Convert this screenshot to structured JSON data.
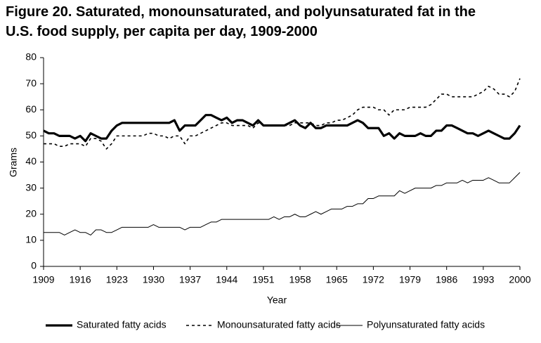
{
  "chart_data": {
    "type": "line",
    "title": "Figure 20. Saturated, monounsaturated, and polyunsaturated fat in the U.S. food supply, per capita per day, 1909-2000",
    "x_label": "Year",
    "y_label": "Grams",
    "x": [
      1909,
      1910,
      1911,
      1912,
      1913,
      1914,
      1915,
      1916,
      1917,
      1918,
      1919,
      1920,
      1921,
      1922,
      1923,
      1924,
      1925,
      1926,
      1927,
      1928,
      1929,
      1930,
      1931,
      1932,
      1933,
      1934,
      1935,
      1936,
      1937,
      1938,
      1939,
      1940,
      1941,
      1942,
      1943,
      1944,
      1945,
      1946,
      1947,
      1948,
      1949,
      1950,
      1951,
      1952,
      1953,
      1954,
      1955,
      1956,
      1957,
      1958,
      1959,
      1960,
      1961,
      1962,
      1963,
      1964,
      1965,
      1966,
      1967,
      1968,
      1969,
      1970,
      1971,
      1972,
      1973,
      1974,
      1975,
      1976,
      1977,
      1978,
      1979,
      1980,
      1981,
      1982,
      1983,
      1984,
      1985,
      1986,
      1987,
      1988,
      1989,
      1990,
      1991,
      1992,
      1993,
      1994,
      1995,
      1996,
      1997,
      1998,
      1999,
      2000
    ],
    "series": [
      {
        "name": "Saturated fatty acids",
        "color": "#000000",
        "style": "thick",
        "values": [
          52,
          51,
          51,
          50,
          50,
          50,
          49,
          50,
          48,
          51,
          50,
          49,
          49,
          52,
          54,
          55,
          55,
          55,
          55,
          55,
          55,
          55,
          55,
          55,
          55,
          56,
          52,
          54,
          54,
          54,
          56,
          58,
          58,
          57,
          56,
          57,
          55,
          56,
          56,
          55,
          54,
          56,
          54,
          54,
          54,
          54,
          54,
          55,
          56,
          54,
          53,
          55,
          53,
          53,
          54,
          54,
          54,
          54,
          54,
          55,
          56,
          55,
          53,
          53,
          53,
          50,
          51,
          49,
          51,
          50,
          50,
          50,
          51,
          50,
          50,
          52,
          52,
          54,
          54,
          53,
          52,
          51,
          51,
          50,
          51,
          52,
          51,
          50,
          49,
          49,
          51,
          54
        ]
      },
      {
        "name": "Monounsaturated fatty acids",
        "color": "#000000",
        "style": "dashed",
        "values": [
          47,
          47,
          47,
          46,
          46,
          47,
          47,
          47,
          46,
          49,
          49,
          48,
          45,
          47,
          50,
          50,
          50,
          50,
          50,
          50,
          51,
          51,
          50,
          50,
          49,
          50,
          50,
          47,
          50,
          50,
          51,
          52,
          53,
          54,
          55,
          55,
          54,
          54,
          54,
          54,
          53,
          55,
          54,
          54,
          54,
          54,
          54,
          54,
          55,
          55,
          55,
          55,
          54,
          54,
          55,
          55,
          56,
          56,
          57,
          58,
          60,
          61,
          61,
          61,
          60,
          60,
          58,
          60,
          60,
          60,
          61,
          61,
          61,
          61,
          62,
          64,
          66,
          66,
          65,
          65,
          65,
          65,
          65,
          66,
          67,
          69,
          68,
          66,
          66,
          65,
          67,
          72
        ]
      },
      {
        "name": "Polyunsaturated fatty acids",
        "color": "#000000",
        "style": "thin",
        "values": [
          13,
          13,
          13,
          13,
          12,
          13,
          14,
          13,
          13,
          12,
          14,
          14,
          13,
          13,
          14,
          15,
          15,
          15,
          15,
          15,
          15,
          16,
          15,
          15,
          15,
          15,
          15,
          14,
          15,
          15,
          15,
          16,
          17,
          17,
          18,
          18,
          18,
          18,
          18,
          18,
          18,
          18,
          18,
          18,
          19,
          18,
          19,
          19,
          20,
          19,
          19,
          20,
          21,
          20,
          21,
          22,
          22,
          22,
          23,
          23,
          24,
          24,
          26,
          26,
          27,
          27,
          27,
          27,
          29,
          28,
          29,
          30,
          30,
          30,
          30,
          31,
          31,
          32,
          32,
          32,
          33,
          32,
          33,
          33,
          33,
          34,
          33,
          32,
          32,
          32,
          34,
          36
        ]
      }
    ],
    "xlim": [
      1909,
      2000
    ],
    "xticks": [
      1909,
      1916,
      1923,
      1930,
      1937,
      1944,
      1951,
      1958,
      1965,
      1972,
      1979,
      1986,
      1993,
      2000
    ],
    "ylim": [
      0,
      80
    ],
    "yticks": [
      0,
      10,
      20,
      30,
      40,
      50,
      60,
      70,
      80
    ],
    "grid": false,
    "legend": "bottom"
  }
}
